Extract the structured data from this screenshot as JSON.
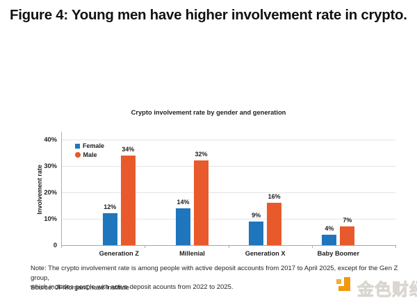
{
  "figure": {
    "title": "Figure 4: Young men have higher involvement rate in crypto."
  },
  "chart_data": {
    "type": "bar",
    "title": "Crypto involvement rate by gender and generation",
    "xlabel": "",
    "ylabel": "Involvement rate",
    "categories": [
      "Generation Z",
      "Millenial",
      "Generation X",
      "Baby Boomer"
    ],
    "series": [
      {
        "name": "Female",
        "color": "#1f76bc",
        "marker": "square",
        "values": [
          12,
          14,
          9,
          4
        ]
      },
      {
        "name": "Male",
        "color": "#e85a2b",
        "marker": "circle",
        "values": [
          34,
          32,
          16,
          7
        ]
      }
    ],
    "value_suffix": "%",
    "ylim": [
      0,
      44
    ],
    "yticks": [
      0,
      10,
      20,
      30,
      40
    ],
    "ytick_labels": [
      "0",
      "10%",
      "20%",
      "30%",
      "40%"
    ],
    "grid": "horizontal",
    "legend_position": "top-left-inside"
  },
  "note": {
    "line1": "Note: The crypto involvement rate is among people with active deposit accounts from 2017 to April 2025, except for the Gen Z group,",
    "line2": "which includes people with active deposit acounts from 2022 to 2025.",
    "source": "Source: JPMorganChase Institute"
  },
  "watermark": {
    "text": "金色财经"
  }
}
